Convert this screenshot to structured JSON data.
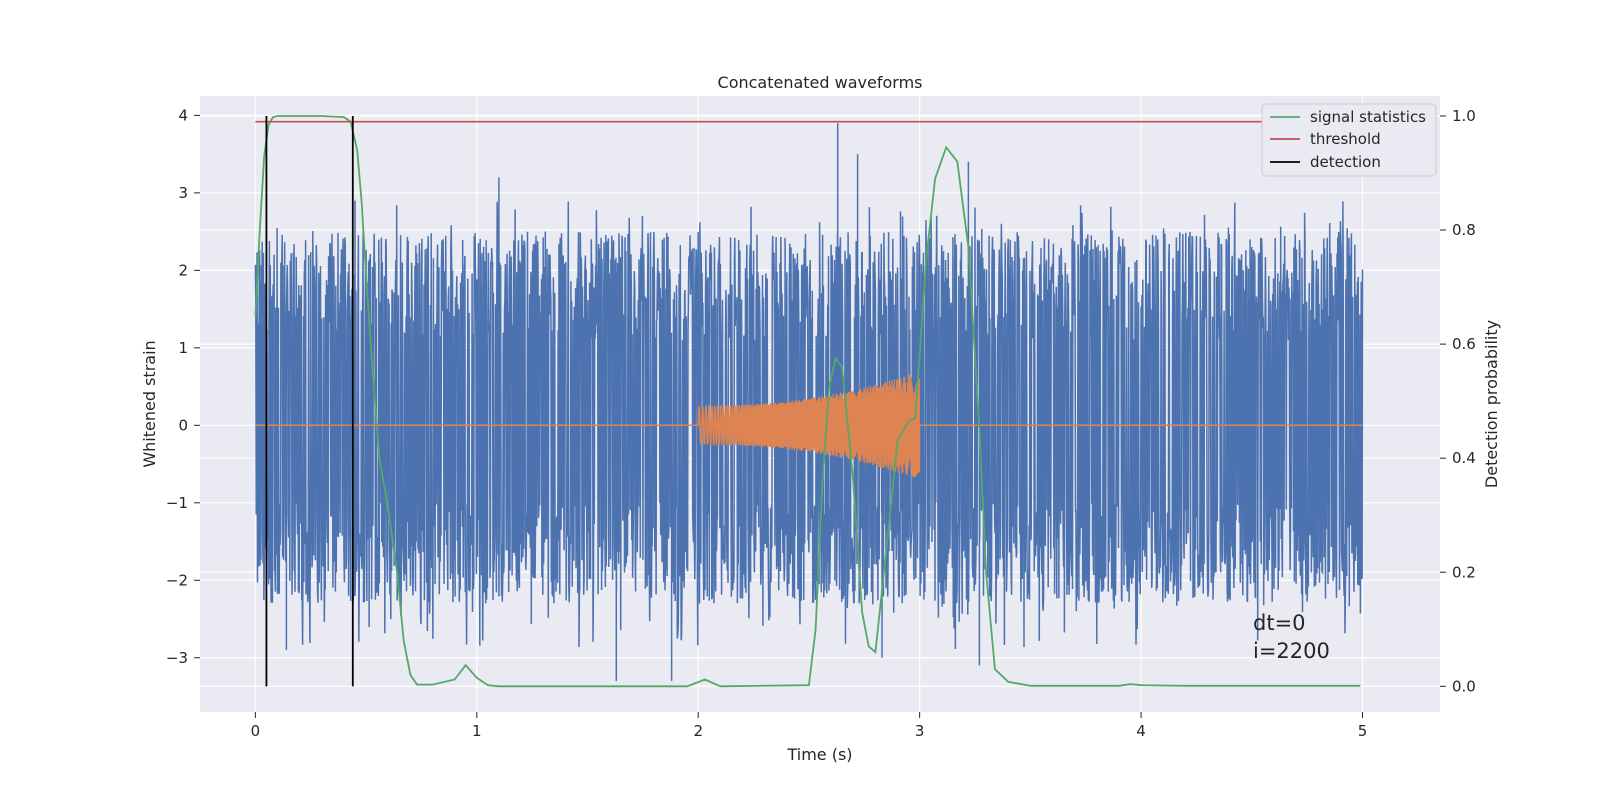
{
  "chart_data": {
    "type": "line",
    "title": "Concatenated waveforms",
    "xlabel": "Time (s)",
    "ylabel": "Whitened strain",
    "ylabel_right": "Detection probability",
    "xlim": [
      -0.25,
      5.35
    ],
    "ylim": [
      -3.7,
      4.25
    ],
    "ylim_right": [
      -0.045,
      1.035
    ],
    "x_ticks": [
      0,
      1,
      2,
      3,
      4,
      5
    ],
    "y_ticks": [
      -3,
      -2,
      -1,
      0,
      1,
      2,
      3,
      4
    ],
    "y_ticks_right": [
      0.0,
      0.2,
      0.4,
      0.6,
      0.8,
      1.0
    ],
    "x_tick_labels": [
      "0",
      "1",
      "2",
      "3",
      "4",
      "5"
    ],
    "y_tick_labels": [
      "−3",
      "−2",
      "−1",
      "0",
      "1",
      "2",
      "3",
      "4"
    ],
    "y_tick_labels_right": [
      "0.0",
      "0.2",
      "0.4",
      "0.6",
      "0.8",
      "1.0"
    ],
    "grid": true,
    "legend_position": "top-right",
    "colors": {
      "background": "#eaeaf2",
      "strain": "#4c72b0",
      "injection": "#dd8452",
      "signal_statistics": "#55a868",
      "threshold": "#c44e52",
      "detection": "#000000",
      "grid": "#ffffff"
    },
    "series": [
      {
        "name": "",
        "role": "whitened strain noise",
        "axis": "left",
        "x_range": [
          0,
          5
        ],
        "envelope_upper": 2.5,
        "envelope_lower": -2.3,
        "peaks": [
          {
            "x": 0.45,
            "y": 2.9
          },
          {
            "x": 1.1,
            "y": 3.2
          },
          {
            "x": 2.63,
            "y": 3.9
          },
          {
            "x": 2.72,
            "y": 3.5
          },
          {
            "x": 3.22,
            "y": 3.4
          },
          {
            "x": 1.63,
            "y": -3.3
          },
          {
            "x": 1.88,
            "y": -3.3
          },
          {
            "x": 2.83,
            "y": -3.0
          },
          {
            "x": 0.14,
            "y": -2.9
          },
          {
            "x": 3.27,
            "y": -3.1
          }
        ]
      },
      {
        "name": "",
        "role": "injected waveform",
        "axis": "left",
        "x_range": [
          0,
          5
        ],
        "chirp_start": 2.0,
        "chirp_end": 3.0,
        "amplitude_start": 0.25,
        "amplitude_end": 0.7
      },
      {
        "name": "signal statistics",
        "axis": "right",
        "x": [
          0.0,
          0.02,
          0.04,
          0.06,
          0.08,
          0.1,
          0.15,
          0.2,
          0.3,
          0.4,
          0.43,
          0.46,
          0.48,
          0.5,
          0.53,
          0.56,
          0.6,
          0.64,
          0.67,
          0.7,
          0.73,
          0.8,
          0.9,
          0.95,
          1.0,
          1.05,
          1.1,
          1.5,
          1.95,
          2.03,
          2.1,
          2.5,
          2.53,
          2.56,
          2.59,
          2.62,
          2.65,
          2.7,
          2.74,
          2.77,
          2.8,
          2.85,
          2.9,
          2.95,
          2.98,
          3.0,
          3.03,
          3.07,
          3.12,
          3.17,
          3.22,
          3.27,
          3.3,
          3.34,
          3.4,
          3.5,
          3.9,
          3.95,
          4.0,
          4.2,
          4.99
        ],
        "y": [
          0.65,
          0.8,
          0.93,
          0.985,
          0.998,
          1.0,
          1.0,
          1.0,
          1.0,
          0.998,
          0.99,
          0.94,
          0.85,
          0.72,
          0.55,
          0.4,
          0.31,
          0.2,
          0.08,
          0.02,
          0.003,
          0.003,
          0.012,
          0.037,
          0.015,
          0.002,
          0.0,
          0.0,
          0.0,
          0.012,
          0.0,
          0.002,
          0.1,
          0.35,
          0.52,
          0.575,
          0.56,
          0.36,
          0.13,
          0.07,
          0.06,
          0.24,
          0.43,
          0.465,
          0.47,
          0.58,
          0.75,
          0.89,
          0.945,
          0.92,
          0.77,
          0.45,
          0.2,
          0.03,
          0.008,
          0.001,
          0.001,
          0.004,
          0.002,
          0.001,
          0.001
        ]
      },
      {
        "name": "threshold",
        "axis": "right",
        "x": [
          0,
          5
        ],
        "y": [
          0.99,
          0.99
        ]
      },
      {
        "name": "detection",
        "axis": "right",
        "x": [
          0.05,
          0.44
        ],
        "y_range": [
          0.0,
          1.0
        ]
      }
    ],
    "legend": [
      "signal statistics",
      "threshold",
      "detection"
    ],
    "annotations": [
      "dt=0",
      "i=2200"
    ]
  }
}
